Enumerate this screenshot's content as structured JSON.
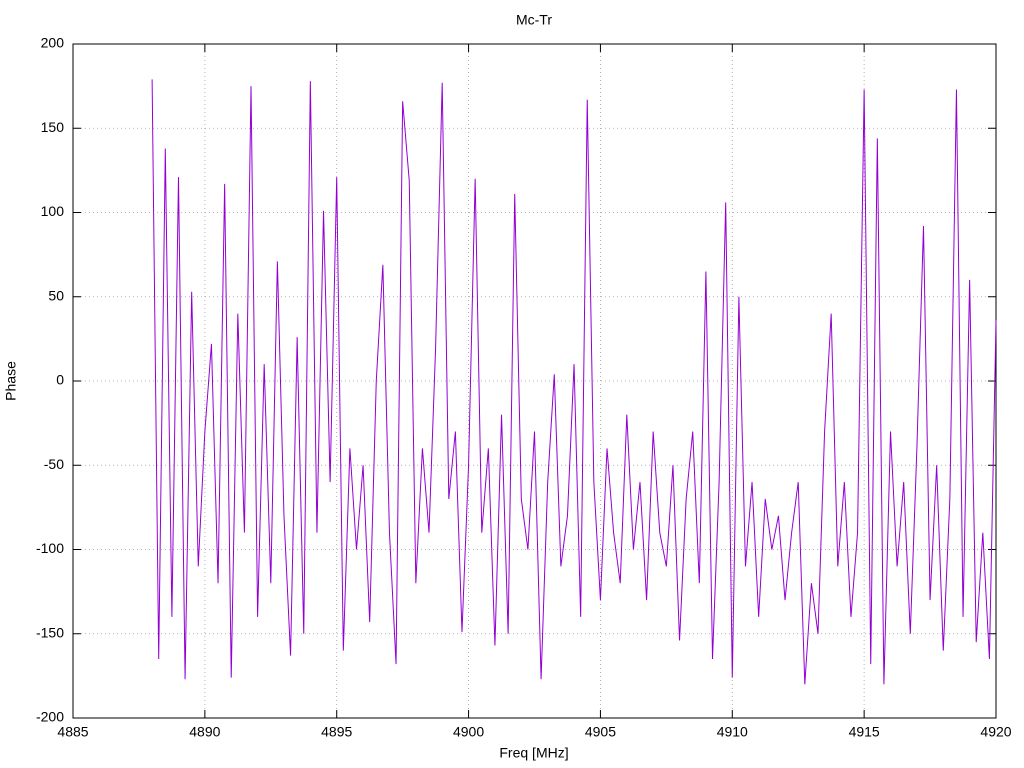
{
  "chart_data": {
    "type": "line",
    "title": "Mc-Tr",
    "x_label": "Freq [MHz]",
    "y_label": "Phase",
    "x": [
      4888.0,
      4888.25,
      4888.5,
      4888.75,
      4889.0,
      4889.25,
      4889.5,
      4889.75,
      4890.0,
      4890.25,
      4890.5,
      4890.75,
      4891.0,
      4891.25,
      4891.5,
      4891.75,
      4892.0,
      4892.25,
      4892.5,
      4892.75,
      4893.0,
      4893.25,
      4893.5,
      4893.75,
      4894.0,
      4894.25,
      4894.5,
      4894.75,
      4895.0,
      4895.25,
      4895.5,
      4895.75,
      4896.0,
      4896.25,
      4896.5,
      4896.75,
      4897.0,
      4897.25,
      4897.5,
      4897.75,
      4898.0,
      4898.25,
      4898.5,
      4898.75,
      4899.0,
      4899.25,
      4899.5,
      4899.75,
      4900.0,
      4900.25,
      4900.5,
      4900.75,
      4901.0,
      4901.25,
      4901.5,
      4901.75,
      4902.0,
      4902.25,
      4902.5,
      4902.75,
      4903.0,
      4903.25,
      4903.5,
      4903.75,
      4904.0,
      4904.25,
      4904.5,
      4904.75,
      4905.0,
      4905.25,
      4905.5,
      4905.75,
      4906.0,
      4906.25,
      4906.5,
      4906.75,
      4907.0,
      4907.25,
      4907.5,
      4907.75,
      4908.0,
      4908.25,
      4908.5,
      4908.75,
      4909.0,
      4909.25,
      4909.5,
      4909.75,
      4910.0,
      4910.25,
      4910.5,
      4910.75,
      4911.0,
      4911.25,
      4911.5,
      4911.75,
      4912.0,
      4912.25,
      4912.5,
      4912.75,
      4913.0,
      4913.25,
      4913.5,
      4913.75,
      4914.0,
      4914.25,
      4914.5,
      4914.75,
      4915.0,
      4915.25,
      4915.5,
      4915.75,
      4916.0,
      4916.25,
      4916.5,
      4916.75,
      4917.0,
      4917.25,
      4917.5,
      4917.75,
      4918.0,
      4918.25,
      4918.5,
      4918.75,
      4919.0,
      4919.25,
      4919.5,
      4919.75,
      4920.0
    ],
    "series": [
      {
        "color": "#9400d3",
        "values": [
          179,
          -165,
          138,
          -140,
          121,
          -177,
          53,
          -110,
          -30,
          22,
          -120,
          117,
          -176,
          40,
          -90,
          175,
          -140,
          10,
          -120,
          71,
          -80,
          -163,
          26,
          -150,
          178,
          -90,
          101,
          -60,
          121,
          -160,
          -40,
          -100,
          -50,
          -143,
          0,
          69,
          -90,
          -168,
          166,
          119,
          -120,
          -40,
          -90,
          20,
          177,
          -70,
          -30,
          -149,
          -50,
          120,
          -90,
          -40,
          -157,
          -20,
          -150,
          111,
          -70,
          -100,
          -30,
          -177,
          -60,
          4,
          -110,
          -80,
          10,
          -140,
          167,
          -60,
          -130,
          -40,
          -90,
          -120,
          -20,
          -100,
          -60,
          -130,
          -30,
          -90,
          -110,
          -50,
          -154,
          -70,
          -30,
          -120,
          65,
          -165,
          -60,
          106,
          -176,
          50,
          -110,
          -60,
          -140,
          -70,
          -100,
          -80,
          -130,
          -90,
          -60,
          -180,
          -120,
          -150,
          -30,
          40,
          -110,
          -60,
          -140,
          -90,
          173,
          -168,
          144,
          -180,
          -30,
          -110,
          -60,
          -150,
          -40,
          92,
          -130,
          -50,
          -160,
          -70,
          173,
          -140,
          60,
          -155,
          -90,
          -165,
          36
        ]
      }
    ],
    "xlim": [
      4885,
      4920
    ],
    "ylim": [
      -200,
      200
    ],
    "xticks": [
      4885,
      4890,
      4895,
      4900,
      4905,
      4910,
      4915,
      4920
    ],
    "yticks": [
      -200,
      -150,
      -100,
      -50,
      0,
      50,
      100,
      150,
      200
    ],
    "grid": true
  }
}
